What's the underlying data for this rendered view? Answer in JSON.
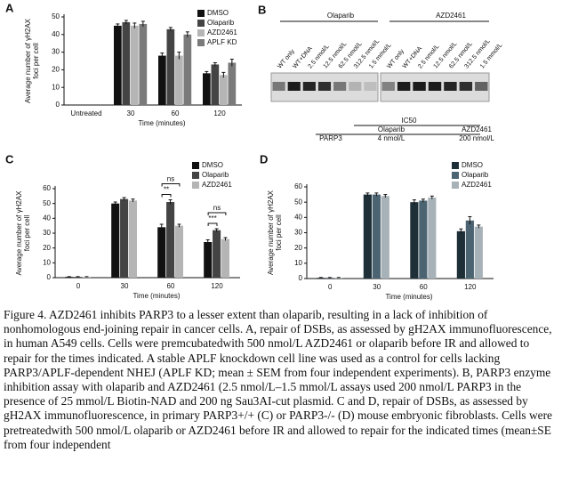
{
  "chart_data": [
    {
      "type": "bar",
      "panel": "A",
      "ylabel": [
        "Average number of γH2AX",
        "foci per cell"
      ],
      "xlabel": "Time (minutes)",
      "categories": [
        "Untreated",
        "30",
        "60",
        "120"
      ],
      "ylim": [
        0,
        50
      ],
      "yticks": [
        0,
        10,
        20,
        30,
        40,
        50
      ],
      "legend": "upper right",
      "series": [
        {
          "name": "DMSO",
          "color": "#111111",
          "values": [
            0,
            45,
            28,
            18
          ],
          "errors": [
            0,
            1,
            1.5,
            1
          ]
        },
        {
          "name": "Olaparib",
          "color": "#444444",
          "values": [
            0,
            47,
            43,
            23
          ],
          "errors": [
            0,
            1,
            1,
            1
          ]
        },
        {
          "name": "AZD2461",
          "color": "#b5b5b5",
          "values": [
            0,
            45,
            28,
            17
          ],
          "errors": [
            0,
            1.5,
            2,
            1.5
          ]
        },
        {
          "name": "APLF KD",
          "color": "#7a7a7a",
          "values": [
            0,
            46,
            40,
            24
          ],
          "errors": [
            0,
            1.5,
            1.5,
            2
          ]
        }
      ]
    },
    {
      "type": "bar",
      "panel": "C",
      "ylabel": [
        "Average number of γH2AX",
        "foci per cell"
      ],
      "xlabel": "Time (minutes)",
      "categories": [
        "0",
        "30",
        "60",
        "120"
      ],
      "ylim": [
        0,
        60
      ],
      "yticks": [
        0,
        10,
        20,
        30,
        40,
        50,
        60
      ],
      "legend": "upper right",
      "annotations": [
        "ns",
        "**",
        "ns",
        "***"
      ],
      "series": [
        {
          "name": "DMSO",
          "color": "#111111",
          "values": [
            0.5,
            50,
            34,
            24
          ],
          "errors": [
            0.2,
            1,
            2,
            1.5
          ]
        },
        {
          "name": "Olaparib",
          "color": "#444444",
          "values": [
            0.5,
            53,
            51,
            32
          ],
          "errors": [
            0.2,
            1,
            1.5,
            1
          ]
        },
        {
          "name": "AZD2461",
          "color": "#b5b5b5",
          "values": [
            0.5,
            52,
            35,
            26
          ],
          "errors": [
            0.2,
            1,
            1,
            1
          ]
        }
      ]
    },
    {
      "type": "bar",
      "panel": "D",
      "ylabel": [
        "Average number of γH2AX",
        "foci per cell"
      ],
      "xlabel": "Time (minutes)",
      "categories": [
        "0",
        "30",
        "60",
        "120"
      ],
      "ylim": [
        0,
        60
      ],
      "yticks": [
        0,
        10,
        20,
        30,
        40,
        50,
        60
      ],
      "legend": "upper right",
      "series": [
        {
          "name": "DMSO",
          "color": "#1f2f38",
          "values": [
            0.5,
            55,
            50,
            31
          ],
          "errors": [
            0.2,
            1,
            1.5,
            1.5
          ]
        },
        {
          "name": "Olaparib",
          "color": "#4c6372",
          "values": [
            0.5,
            55,
            51,
            38
          ],
          "errors": [
            0.2,
            1,
            1,
            2.5
          ]
        },
        {
          "name": "AZD2461",
          "color": "#a7b2b8",
          "values": [
            0.5,
            54,
            53,
            34
          ],
          "errors": [
            0.2,
            1,
            1,
            1
          ]
        }
      ]
    }
  ],
  "panel_b": {
    "panel": "B",
    "groups": [
      "Olaparib",
      "AZD2461"
    ],
    "lanes": [
      "WT only",
      "WT+DNA",
      "2.5 nmol/L",
      "12.5 nmol/L",
      "62.5 nmol/L",
      "312.5 nmol/L",
      "1.5 mmol/L"
    ],
    "table": {
      "header": [
        "IC50",
        "Olaparib",
        "AZD2461"
      ],
      "rows": [
        [
          "PARP3",
          "4 nmol/L",
          "200 nmol/L"
        ]
      ]
    }
  },
  "caption": "Figure 4. AZD2461 inhibits PARP3 to a lesser extent than olaparib, resulting in a lack of inhibition of nonhomologous end-joining repair in cancer cells. A, repair of DSBs, as assessed by gH2AX immunofluorescence, in human A549 cells. Cells were premcubatedwith 500 nmol/L AZD2461 or olaparib before IR and allowed to repair for the times indicated. A stable APLF knockdown cell line was used as a control for cells lacking PARP3/APLF-dependent NHEJ (APLF KD; mean ± SEM from four independent experiments). B, PARP3 enzyme inhibition assay with olaparib and AZD2461 (2.5 nmol/L–1.5 mmol/L assays used 200 nmol/L PARP3 in the presence of 25 mmol/L Biotin-NAD and 200 ng Sau3AI-cut plasmid. C and D, repair of DSBs, as assessed by gH2AX immunofluorescence, in primary PARP3+/+ (C) or PARP3-/- (D) mouse embryonic fibroblasts. Cells were pretreatedwith 500 nmol/L olaparib or AZD2461 before IR and allowed to repair for the indicated times (mean±SE from four independent"
}
